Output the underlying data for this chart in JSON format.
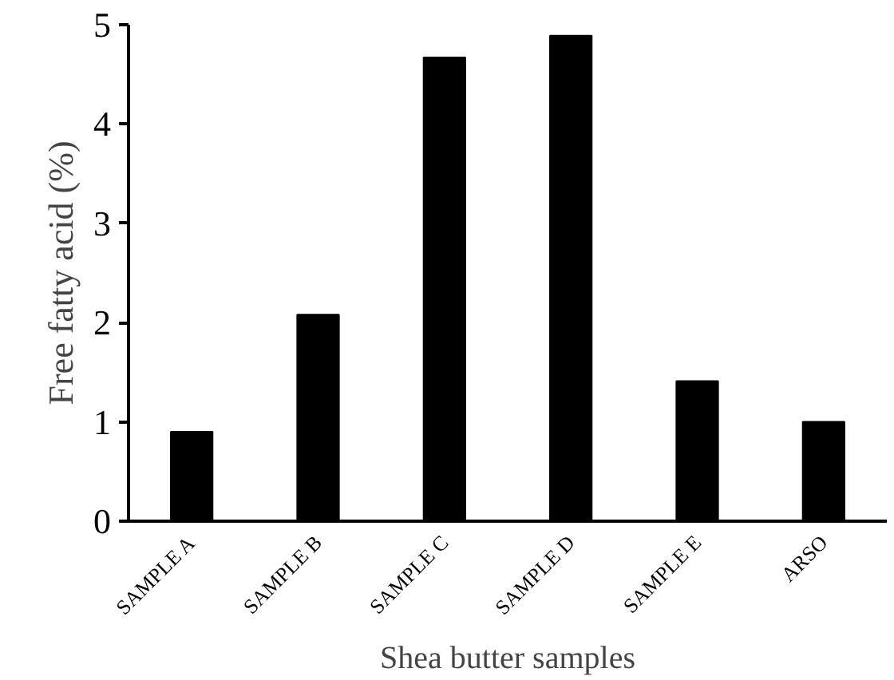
{
  "chart_data": {
    "type": "bar",
    "xlabel": "Shea butter samples",
    "ylabel": "Free fatty acid (%)",
    "categories": [
      "SAMPLE A",
      "SAMPLE B",
      "SAMPLE C",
      "SAMPLE D",
      "SAMPLE E",
      "ARSO"
    ],
    "values": [
      0.9,
      2.08,
      4.67,
      4.89,
      1.41,
      1.0
    ],
    "color": "#000000",
    "ylim": [
      0,
      5
    ],
    "yticks": [
      0,
      1,
      2,
      3,
      4,
      5
    ],
    "grid": false
  }
}
